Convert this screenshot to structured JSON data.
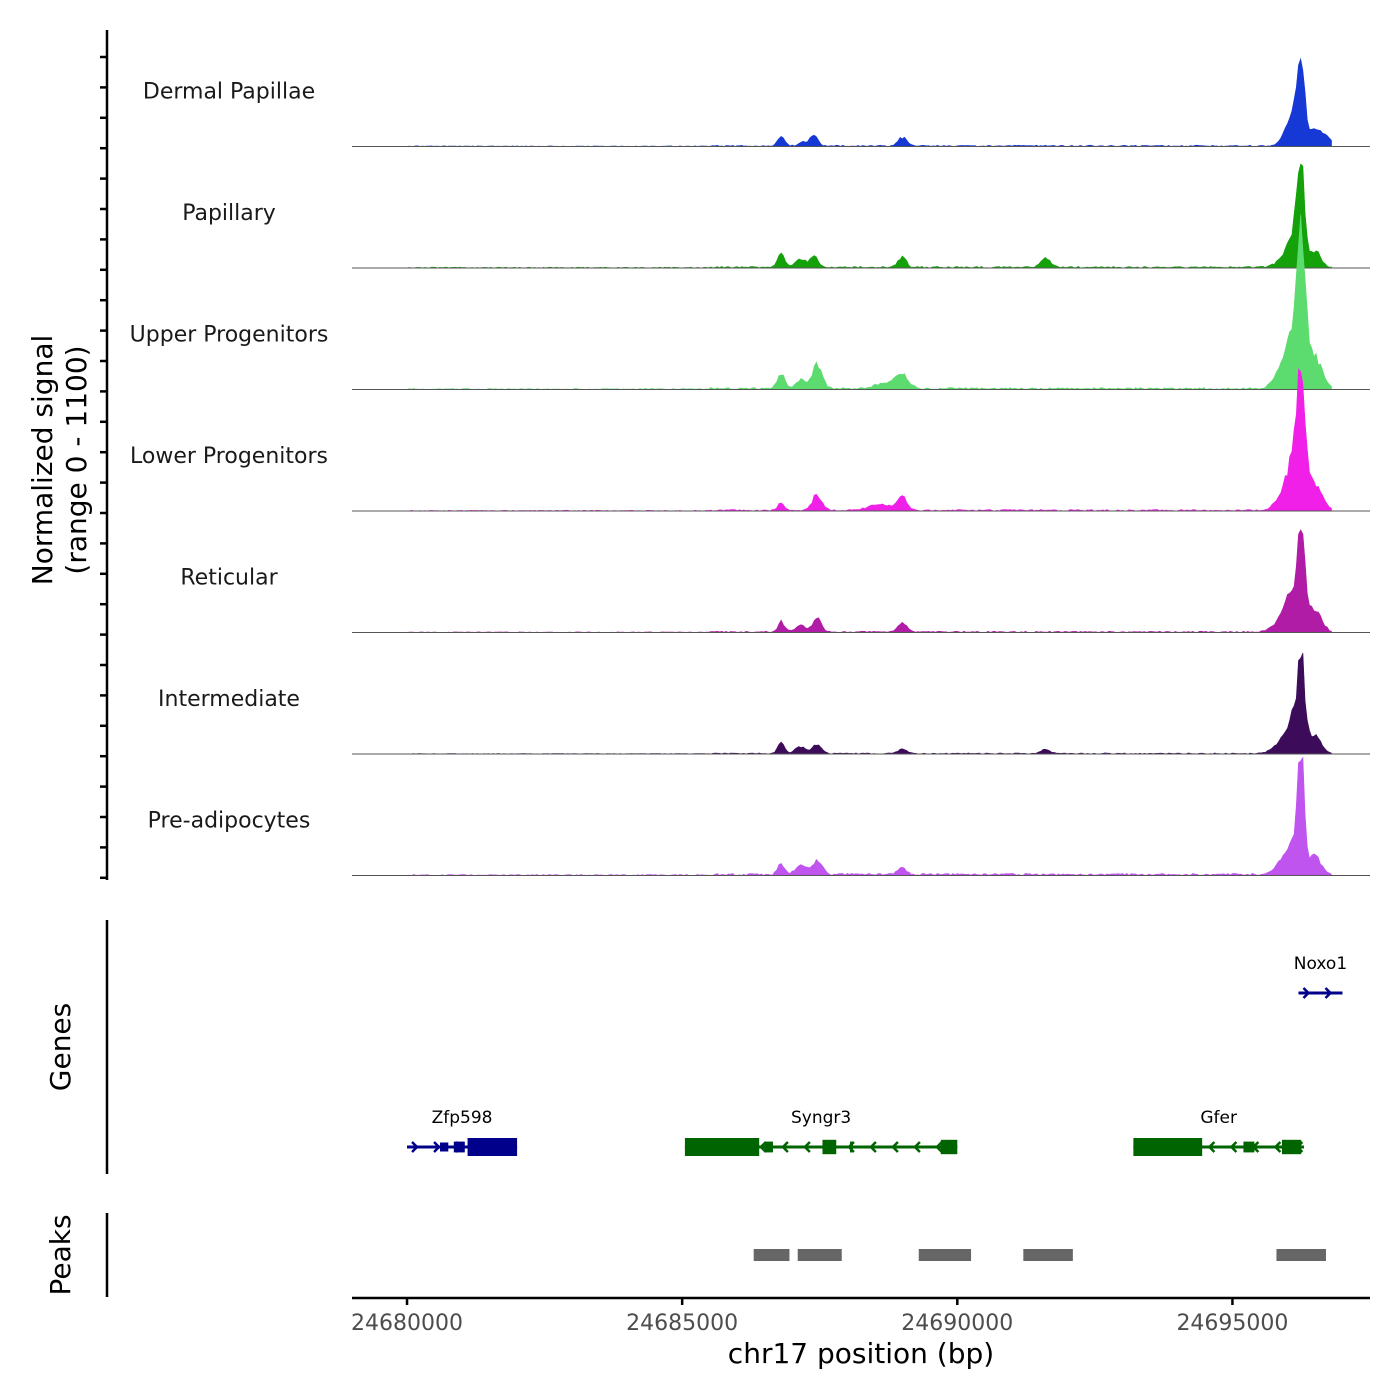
{
  "chart_data": {
    "type": "area",
    "title": "",
    "chromosome": "chr17",
    "xlabel": "chr17 position (bp)",
    "ylabel": "Normalized signal",
    "ylabel_range": "(range 0 - 1100)",
    "xlim": [
      24679000,
      24697500
    ],
    "ylim": [
      0,
      1100
    ],
    "x_ticks": [
      24680000,
      24685000,
      24690000,
      24695000
    ],
    "x_tick_labels": [
      "24680000",
      "24685000",
      "24690000",
      "24695000"
    ],
    "tracks": [
      {
        "name": "Dermal Papillae",
        "color": "#1639d6",
        "peaks": [
          [
            24686800,
            150,
            60
          ],
          [
            24687400,
            160,
            70
          ],
          [
            24687200,
            55,
            80
          ],
          [
            24689000,
            120,
            80
          ],
          [
            24696250,
            1000,
            60
          ],
          [
            24696150,
            500,
            120
          ],
          [
            24696500,
            220,
            100
          ],
          [
            24696000,
            120,
            120
          ],
          [
            24696700,
            130,
            90
          ]
        ],
        "baseline": 12
      },
      {
        "name": "Papillary",
        "color": "#15a10a",
        "peaks": [
          [
            24686800,
            210,
            60
          ],
          [
            24687400,
            190,
            70
          ],
          [
            24687150,
            120,
            90
          ],
          [
            24689000,
            160,
            70
          ],
          [
            24691600,
            140,
            90
          ],
          [
            24696250,
            1150,
            60
          ],
          [
            24696150,
            580,
            120
          ],
          [
            24696500,
            240,
            100
          ],
          [
            24695900,
            110,
            120
          ]
        ],
        "baseline": 15
      },
      {
        "name": "Upper Progenitors",
        "color": "#5cdb6f",
        "peaks": [
          [
            24686800,
            220,
            70
          ],
          [
            24687450,
            340,
            90
          ],
          [
            24687150,
            130,
            90
          ],
          [
            24689000,
            200,
            110
          ],
          [
            24688700,
            90,
            180
          ],
          [
            24696250,
            1600,
            70
          ],
          [
            24696150,
            900,
            150
          ],
          [
            24696500,
            420,
            130
          ],
          [
            24695900,
            200,
            150
          ]
        ],
        "baseline": 18
      },
      {
        "name": "Lower Progenitors",
        "color": "#f020e8",
        "peaks": [
          [
            24686800,
            110,
            60
          ],
          [
            24687450,
            220,
            90
          ],
          [
            24689000,
            180,
            90
          ],
          [
            24688600,
            80,
            200
          ],
          [
            24696250,
            1350,
            70
          ],
          [
            24696150,
            800,
            150
          ],
          [
            24696500,
            350,
            130
          ],
          [
            24695900,
            120,
            150
          ]
        ],
        "baseline": 14
      },
      {
        "name": "Reticular",
        "color": "#b01ca6",
        "peaks": [
          [
            24686800,
            150,
            60
          ],
          [
            24687450,
            200,
            80
          ],
          [
            24687150,
            100,
            90
          ],
          [
            24689000,
            140,
            80
          ],
          [
            24696250,
            1050,
            60
          ],
          [
            24696150,
            600,
            150
          ],
          [
            24696500,
            300,
            120
          ],
          [
            24695900,
            160,
            150
          ]
        ],
        "baseline": 12
      },
      {
        "name": "Intermediate",
        "color": "#3c0c5a",
        "peaks": [
          [
            24686800,
            180,
            60
          ],
          [
            24687450,
            140,
            80
          ],
          [
            24687150,
            100,
            90
          ],
          [
            24689000,
            70,
            80
          ],
          [
            24691600,
            60,
            80
          ],
          [
            24696250,
            1050,
            60
          ],
          [
            24696150,
            550,
            130
          ],
          [
            24696500,
            260,
            110
          ],
          [
            24695900,
            150,
            150
          ]
        ],
        "baseline": 10
      },
      {
        "name": "Pre-adipocytes",
        "color": "#bf55ee",
        "peaks": [
          [
            24686800,
            160,
            60
          ],
          [
            24687450,
            210,
            90
          ],
          [
            24687150,
            140,
            100
          ],
          [
            24689000,
            90,
            80
          ],
          [
            24696250,
            1550,
            55
          ],
          [
            24696150,
            500,
            120
          ],
          [
            24696500,
            260,
            110
          ],
          [
            24695900,
            200,
            120
          ]
        ],
        "baseline": 20
      }
    ],
    "genes": [
      {
        "name": "Zfp598",
        "strand": "+",
        "color": "#00008b",
        "start": 24680000,
        "end": 24682000,
        "exons": [
          [
            24680600,
            24680750,
            0.5
          ],
          [
            24680850,
            24681050,
            0.6
          ],
          [
            24681100,
            24682000,
            1.0
          ]
        ],
        "row": 2
      },
      {
        "name": "Syngr3",
        "strand": "-",
        "color": "#006400",
        "start": 24685050,
        "end": 24690000,
        "exons": [
          [
            24685050,
            24686400,
            1.0
          ],
          [
            24686500,
            24686650,
            0.6
          ],
          [
            24687550,
            24687800,
            0.8
          ],
          [
            24688050,
            24688100,
            0.6
          ],
          [
            24689700,
            24690000,
            0.8
          ]
        ],
        "row": 2
      },
      {
        "name": "Gfer",
        "strand": "-",
        "color": "#006400",
        "start": 24693200,
        "end": 24696300,
        "exons": [
          [
            24693200,
            24694450,
            1.0
          ],
          [
            24695200,
            24695400,
            0.6
          ],
          [
            24695900,
            24696250,
            0.8
          ]
        ],
        "row": 2
      },
      {
        "name": "Noxo1",
        "strand": "+",
        "color": "#00008b",
        "start": 24696200,
        "end": 24697000,
        "exons": [],
        "row": 1
      }
    ],
    "genes_label": "Genes",
    "peaks_label": "Peaks",
    "peak_color": "#666666",
    "peak_regions": [
      [
        24686300,
        24686950
      ],
      [
        24687100,
        24687900
      ],
      [
        24689300,
        24690250
      ],
      [
        24691200,
        24692100
      ],
      [
        24695800,
        24696700
      ]
    ]
  }
}
